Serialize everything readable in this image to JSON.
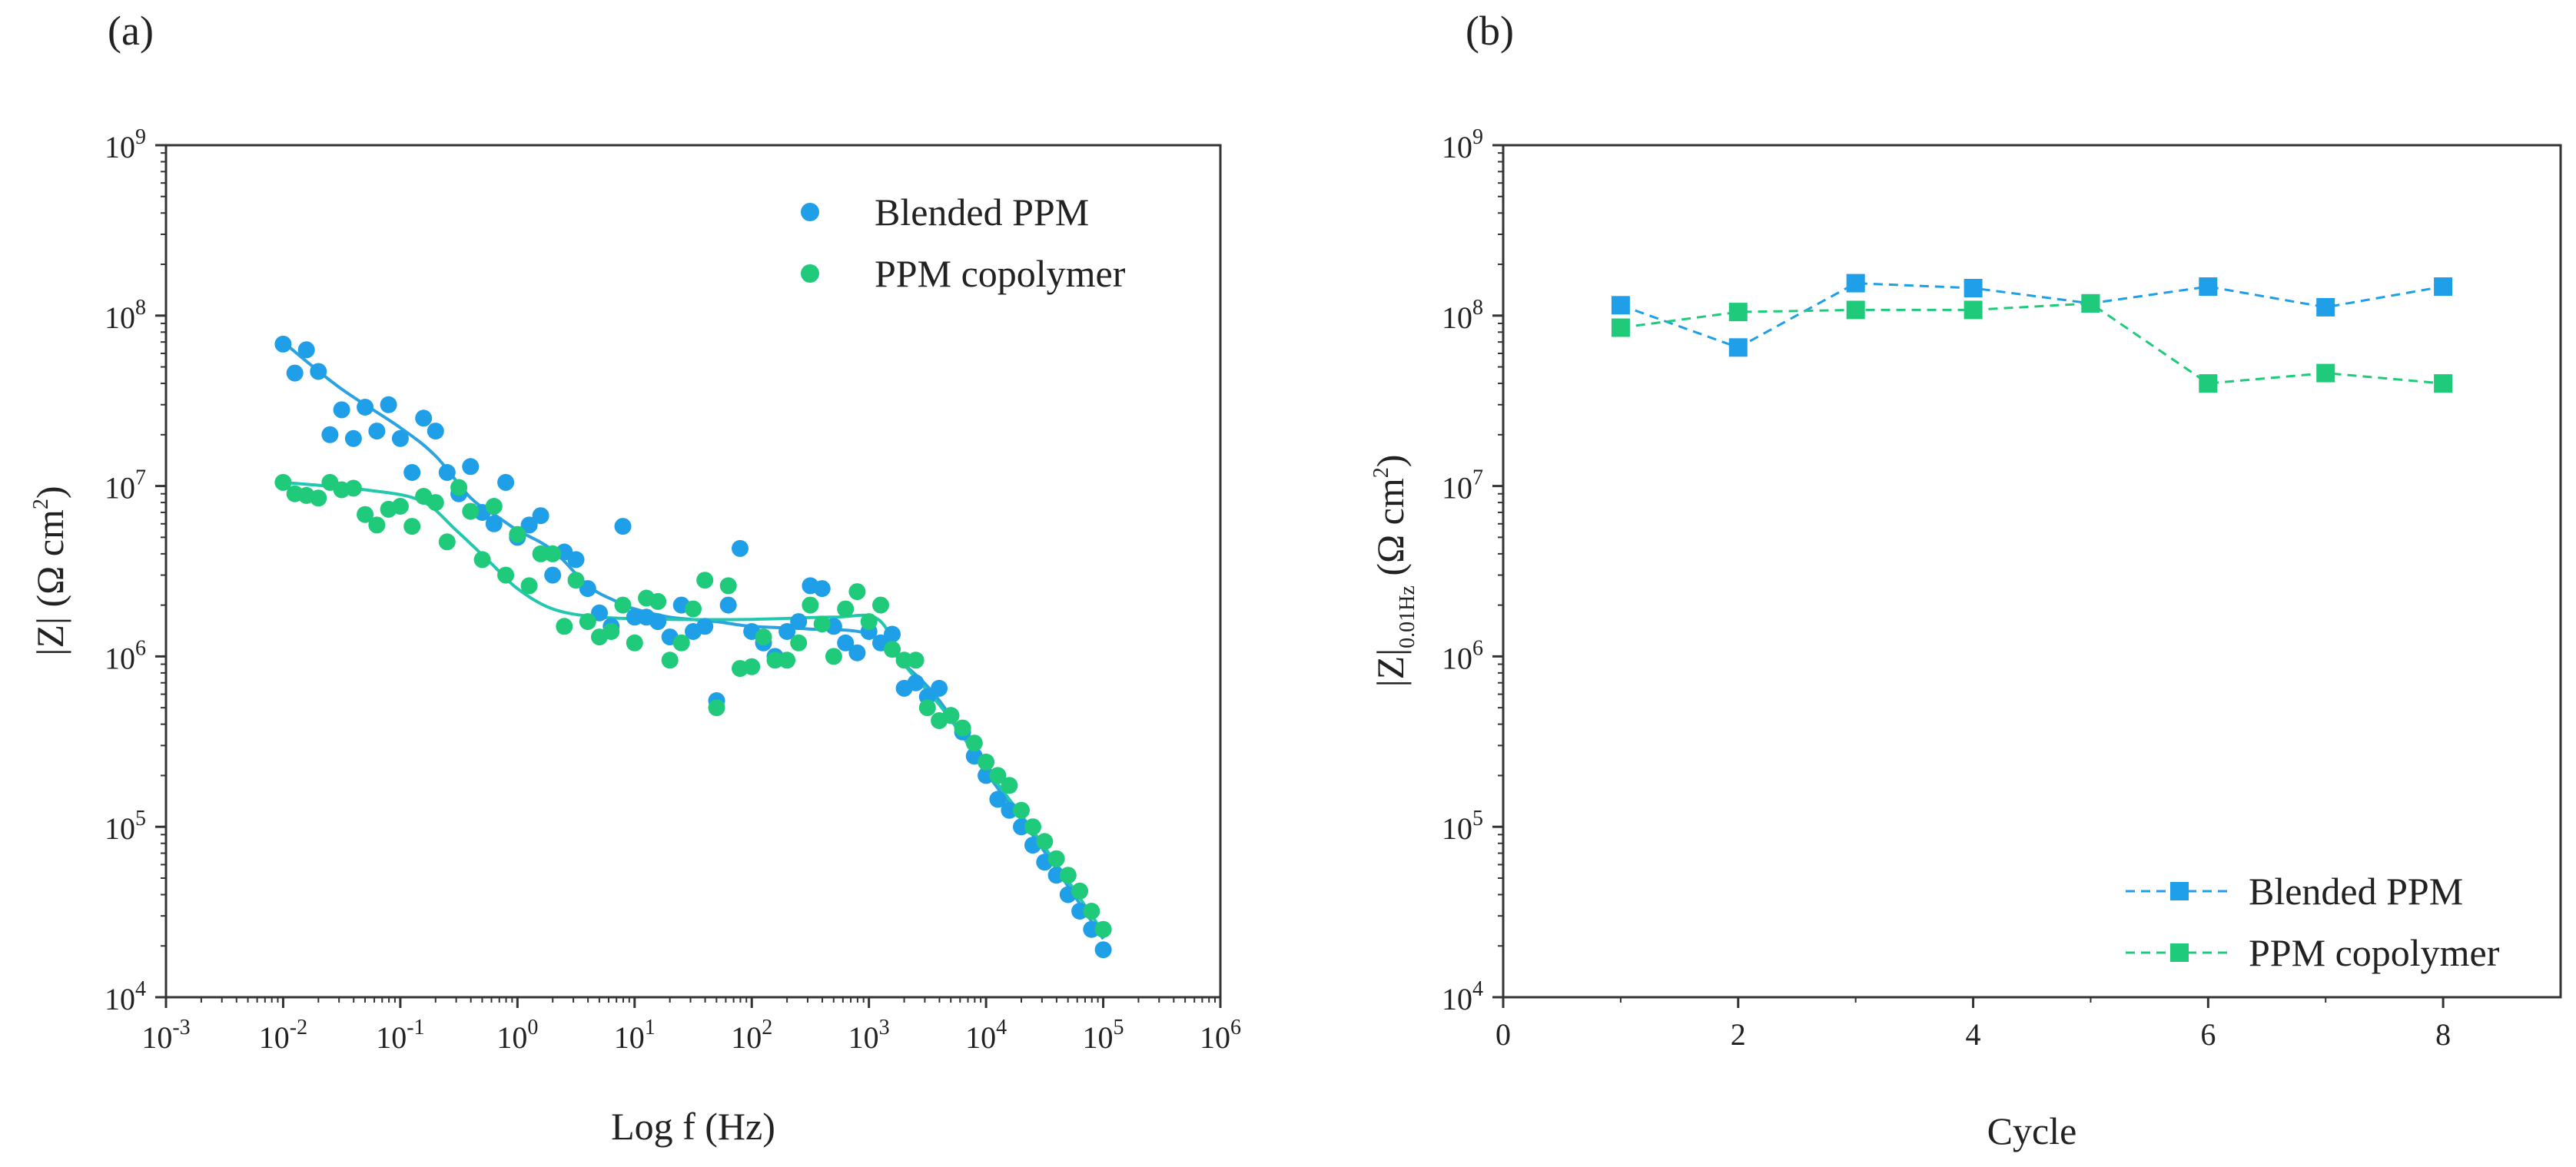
{
  "colors": {
    "blended": "#1E9FE8",
    "copolymer": "#1FCB7A",
    "blended_fit": "#2AA3E0",
    "copolymer_fit": "#22C7B0",
    "axis": "#333333",
    "background": "#ffffff"
  },
  "panels": {
    "a": {
      "label": "(a)"
    },
    "b": {
      "label": "(b)"
    }
  },
  "chart_data": [
    {
      "type": "scatter",
      "panel": "(a)",
      "xlabel": "Log f (Hz)",
      "ylabel_base": "|Z| (Ω cm",
      "ylabel_sup": "2",
      "ylabel_close": ")",
      "x_scale": "log",
      "y_scale": "log",
      "xlim": [
        0.001,
        1000000
      ],
      "ylim": [
        10000,
        1000000000
      ],
      "x_ticks": [
        {
          "base": "10",
          "exp": "-3",
          "value": 0.001
        },
        {
          "base": "10",
          "exp": "-2",
          "value": 0.01
        },
        {
          "base": "10",
          "exp": "-1",
          "value": 0.1
        },
        {
          "base": "10",
          "exp": "0",
          "value": 1
        },
        {
          "base": "10",
          "exp": "1",
          "value": 10
        },
        {
          "base": "10",
          "exp": "2",
          "value": 100
        },
        {
          "base": "10",
          "exp": "3",
          "value": 1000
        },
        {
          "base": "10",
          "exp": "4",
          "value": 10000
        },
        {
          "base": "10",
          "exp": "5",
          "value": 100000
        },
        {
          "base": "10",
          "exp": "6",
          "value": 1000000
        }
      ],
      "y_ticks": [
        {
          "base": "10",
          "exp": "4",
          "value": 10000
        },
        {
          "base": "10",
          "exp": "5",
          "value": 100000
        },
        {
          "base": "10",
          "exp": "6",
          "value": 1000000
        },
        {
          "base": "10",
          "exp": "7",
          "value": 10000000
        },
        {
          "base": "10",
          "exp": "8",
          "value": 100000000
        },
        {
          "base": "10",
          "exp": "9",
          "value": 1000000000
        }
      ],
      "legend_position": "top-right",
      "grid": false,
      "series": [
        {
          "name": "Blended PPM",
          "color_key": "blended",
          "points": [
            [
              0.01,
              68000000
            ],
            [
              0.0126,
              46000000
            ],
            [
              0.0158,
              63000000
            ],
            [
              0.02,
              47000000
            ],
            [
              0.0251,
              20000000
            ],
            [
              0.0316,
              28000000
            ],
            [
              0.0398,
              19000000
            ],
            [
              0.0501,
              29000000
            ],
            [
              0.0631,
              21000000
            ],
            [
              0.0794,
              30000000
            ],
            [
              0.1,
              19000000
            ],
            [
              0.126,
              12000000
            ],
            [
              0.158,
              25000000
            ],
            [
              0.2,
              21000000
            ],
            [
              0.251,
              12000000
            ],
            [
              0.316,
              9000000
            ],
            [
              0.398,
              13000000
            ],
            [
              0.501,
              7000000
            ],
            [
              0.631,
              6000000
            ],
            [
              0.794,
              10500000
            ],
            [
              1.0,
              5000000
            ],
            [
              1.26,
              5900000
            ],
            [
              1.58,
              6700000
            ],
            [
              2.0,
              3000000
            ],
            [
              2.51,
              4100000
            ],
            [
              3.16,
              3700000
            ],
            [
              3.98,
              2500000
            ],
            [
              5.01,
              1800000
            ],
            [
              6.31,
              1500000
            ],
            [
              7.94,
              5800000
            ],
            [
              10,
              1700000
            ],
            [
              12.6,
              1700000
            ],
            [
              15.8,
              1600000
            ],
            [
              20,
              1300000
            ],
            [
              25.1,
              2000000
            ],
            [
              31.6,
              1400000
            ],
            [
              39.8,
              1500000
            ],
            [
              50.1,
              550000
            ],
            [
              63.1,
              2000000
            ],
            [
              79.4,
              4300000
            ],
            [
              100,
              1400000
            ],
            [
              126,
              1200000
            ],
            [
              158,
              1000000
            ],
            [
              200,
              1400000
            ],
            [
              251,
              1600000
            ],
            [
              316,
              2600000
            ],
            [
              398,
              2500000
            ],
            [
              501,
              1500000
            ],
            [
              631,
              1200000
            ],
            [
              794,
              1050000
            ],
            [
              1000,
              1400000
            ],
            [
              1260,
              1200000
            ],
            [
              1580,
              1350000
            ],
            [
              2000,
              650000
            ],
            [
              2510,
              700000
            ],
            [
              3160,
              580000
            ],
            [
              3980,
              650000
            ],
            [
              5010,
              450000
            ],
            [
              6310,
              360000
            ],
            [
              7940,
              260000
            ],
            [
              10000,
              200000
            ],
            [
              12600,
              145000
            ],
            [
              15800,
              125000
            ],
            [
              20000,
              100000
            ],
            [
              25100,
              78000
            ],
            [
              31600,
              62000
            ],
            [
              39800,
              52000
            ],
            [
              50100,
              40000
            ],
            [
              63100,
              32000
            ],
            [
              79400,
              25000
            ],
            [
              100000,
              19000
            ]
          ],
          "fit": [
            [
              0.01,
              70000000
            ],
            [
              0.03,
              38000000
            ],
            [
              0.1,
              22000000
            ],
            [
              0.2,
              15000000
            ],
            [
              0.4,
              8500000
            ],
            [
              0.7,
              6500000
            ],
            [
              1.0,
              5500000
            ],
            [
              2.0,
              4200000
            ],
            [
              4.0,
              2600000
            ],
            [
              7.0,
              2100000
            ],
            [
              10,
              1900000
            ],
            [
              20,
              1700000
            ],
            [
              50,
              1600000
            ],
            [
              100,
              1500000
            ],
            [
              300,
              1450000
            ],
            [
              1000,
              1350000
            ],
            [
              2000,
              900000
            ],
            [
              4000,
              550000
            ],
            [
              10000,
              210000
            ],
            [
              30000,
              75000
            ],
            [
              100000,
              22000
            ]
          ]
        },
        {
          "name": "PPM copolymer",
          "color_key": "copolymer",
          "points": [
            [
              0.01,
              10500000
            ],
            [
              0.0126,
              9000000
            ],
            [
              0.0158,
              8800000
            ],
            [
              0.02,
              8500000
            ],
            [
              0.0251,
              10500000
            ],
            [
              0.0316,
              9500000
            ],
            [
              0.0398,
              9700000
            ],
            [
              0.0501,
              6800000
            ],
            [
              0.0631,
              5900000
            ],
            [
              0.0794,
              7300000
            ],
            [
              0.1,
              7600000
            ],
            [
              0.126,
              5800000
            ],
            [
              0.158,
              8700000
            ],
            [
              0.2,
              8000000
            ],
            [
              0.251,
              4700000
            ],
            [
              0.316,
              9800000
            ],
            [
              0.398,
              7100000
            ],
            [
              0.501,
              3700000
            ],
            [
              0.631,
              7600000
            ],
            [
              0.794,
              3000000
            ],
            [
              1.0,
              5200000
            ],
            [
              1.26,
              2600000
            ],
            [
              1.58,
              4000000
            ],
            [
              2.0,
              4000000
            ],
            [
              2.51,
              1500000
            ],
            [
              3.16,
              2800000
            ],
            [
              3.98,
              1600000
            ],
            [
              5.01,
              1300000
            ],
            [
              6.31,
              1400000
            ],
            [
              7.94,
              2000000
            ],
            [
              10,
              1200000
            ],
            [
              12.6,
              2200000
            ],
            [
              15.8,
              2100000
            ],
            [
              20,
              950000
            ],
            [
              25.1,
              1200000
            ],
            [
              31.6,
              1900000
            ],
            [
              39.8,
              2800000
            ],
            [
              50.1,
              500000
            ],
            [
              63.1,
              2600000
            ],
            [
              79.4,
              850000
            ],
            [
              100,
              870000
            ],
            [
              126,
              1300000
            ],
            [
              158,
              950000
            ],
            [
              200,
              950000
            ],
            [
              251,
              1200000
            ],
            [
              316,
              2000000
            ],
            [
              398,
              1550000
            ],
            [
              501,
              1000000
            ],
            [
              631,
              1900000
            ],
            [
              794,
              2400000
            ],
            [
              1000,
              1600000
            ],
            [
              1260,
              2000000
            ],
            [
              1580,
              1100000
            ],
            [
              2000,
              950000
            ],
            [
              2510,
              950000
            ],
            [
              3160,
              500000
            ],
            [
              3980,
              420000
            ],
            [
              5010,
              450000
            ],
            [
              6310,
              380000
            ],
            [
              7940,
              310000
            ],
            [
              10000,
              240000
            ],
            [
              12600,
              200000
            ],
            [
              15800,
              175000
            ],
            [
              20000,
              125000
            ],
            [
              25100,
              100000
            ],
            [
              31600,
              82000
            ],
            [
              39800,
              65000
            ],
            [
              50100,
              52000
            ],
            [
              63100,
              42000
            ],
            [
              79400,
              32000
            ],
            [
              100000,
              25000
            ]
          ],
          "fit": [
            [
              0.01,
              10500000
            ],
            [
              0.05,
              9500000
            ],
            [
              0.15,
              8200000
            ],
            [
              0.3,
              5500000
            ],
            [
              0.6,
              3500000
            ],
            [
              1.0,
              2500000
            ],
            [
              2.0,
              1900000
            ],
            [
              5.0,
              1700000
            ],
            [
              20,
              1650000
            ],
            [
              100,
              1650000
            ],
            [
              500,
              1700000
            ],
            [
              1200,
              1650000
            ],
            [
              2000,
              900000
            ],
            [
              4000,
              520000
            ],
            [
              10000,
              220000
            ],
            [
              30000,
              80000
            ],
            [
              100000,
              24000
            ]
          ]
        }
      ]
    },
    {
      "type": "line",
      "panel": "(b)",
      "xlabel": "Cycle",
      "ylabel_base": "|Z|",
      "ylabel_sub": "0.01Hz",
      "ylabel_unit": " (Ω cm",
      "ylabel_sup": "2",
      "ylabel_close": ")",
      "x_scale": "linear",
      "y_scale": "log",
      "xlim": [
        0,
        9
      ],
      "ylim": [
        10000,
        1000000000
      ],
      "x_ticks": [
        "0",
        "2",
        "4",
        "6",
        "8"
      ],
      "y_ticks": [
        {
          "base": "10",
          "exp": "4",
          "value": 10000
        },
        {
          "base": "10",
          "exp": "5",
          "value": 100000
        },
        {
          "base": "10",
          "exp": "6",
          "value": 1000000
        },
        {
          "base": "10",
          "exp": "7",
          "value": 10000000
        },
        {
          "base": "10",
          "exp": "8",
          "value": 100000000
        },
        {
          "base": "10",
          "exp": "9",
          "value": 1000000000
        }
      ],
      "legend_position": "bottom-right",
      "grid": false,
      "line_style": "dashed",
      "marker": "square",
      "series": [
        {
          "name": "Blended PPM",
          "color_key": "blended",
          "x": [
            1,
            2,
            3,
            4,
            5,
            6,
            7,
            8
          ],
          "values": [
            115000000,
            65000000,
            155000000,
            145000000,
            118000000,
            148000000,
            112000000,
            148000000
          ]
        },
        {
          "name": "PPM copolymer",
          "color_key": "copolymer",
          "x": [
            1,
            2,
            3,
            4,
            5,
            6,
            7,
            8
          ],
          "values": [
            85000000,
            105000000,
            108000000,
            108000000,
            118000000,
            40000000,
            46000000,
            40000000
          ]
        }
      ]
    }
  ]
}
